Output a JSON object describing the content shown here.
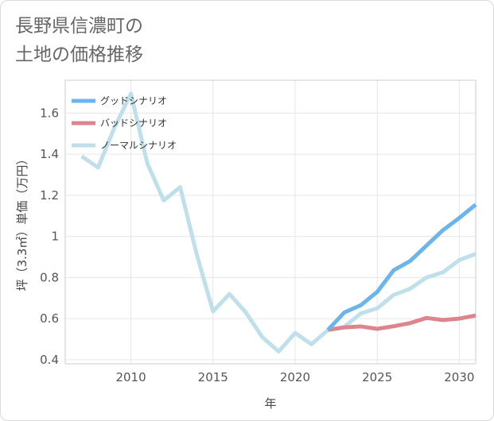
{
  "chart_data": {
    "type": "line",
    "title": [
      "長野県信濃町の",
      "土地の価格推移"
    ],
    "xlabel": "年",
    "ylabel": "坪（3.3㎡）単価（万円）",
    "xlim": [
      2006,
      2031
    ],
    "ylim": [
      0.38,
      1.76
    ],
    "x_ticks": [
      2010,
      2015,
      2020,
      2025,
      2030
    ],
    "y_ticks": [
      0.4,
      0.6,
      0.8,
      1,
      1.2,
      1.4,
      1.6
    ],
    "y_tick_labels": [
      "0.4",
      "0.6",
      "0.8",
      "1",
      "1.2",
      "1.4",
      "1.6"
    ],
    "legend_position": "top-left",
    "series": [
      {
        "name": "グッドシナリオ",
        "color": "#6cb4ec",
        "x": [
          2022,
          2023,
          2024,
          2025,
          2026,
          2027,
          2028,
          2029,
          2030,
          2031
        ],
        "values": [
          0.545,
          0.63,
          0.665,
          0.73,
          0.835,
          0.88,
          0.955,
          1.03,
          1.09,
          1.155
        ]
      },
      {
        "name": "バッドシナリオ",
        "color": "#dd848c",
        "x": [
          2022,
          2023,
          2024,
          2025,
          2026,
          2027,
          2028,
          2029,
          2030,
          2031
        ],
        "values": [
          0.545,
          0.557,
          0.562,
          0.55,
          0.563,
          0.578,
          0.603,
          0.593,
          0.6,
          0.615
        ]
      },
      {
        "name": "ノーマルシナリオ",
        "color": "#bfdfeb",
        "x": [
          2007,
          2008,
          2009,
          2010,
          2011,
          2012,
          2013,
          2014,
          2015,
          2016,
          2017,
          2018,
          2019,
          2020,
          2021,
          2022,
          2023,
          2024,
          2025,
          2026,
          2027,
          2028,
          2029,
          2030,
          2031
        ],
        "values": [
          1.39,
          1.335,
          1.53,
          1.695,
          1.355,
          1.175,
          1.24,
          0.915,
          0.635,
          0.72,
          0.63,
          0.51,
          0.44,
          0.53,
          0.475,
          0.545,
          0.56,
          0.625,
          0.65,
          0.715,
          0.745,
          0.8,
          0.825,
          0.885,
          0.915
        ]
      }
    ]
  }
}
